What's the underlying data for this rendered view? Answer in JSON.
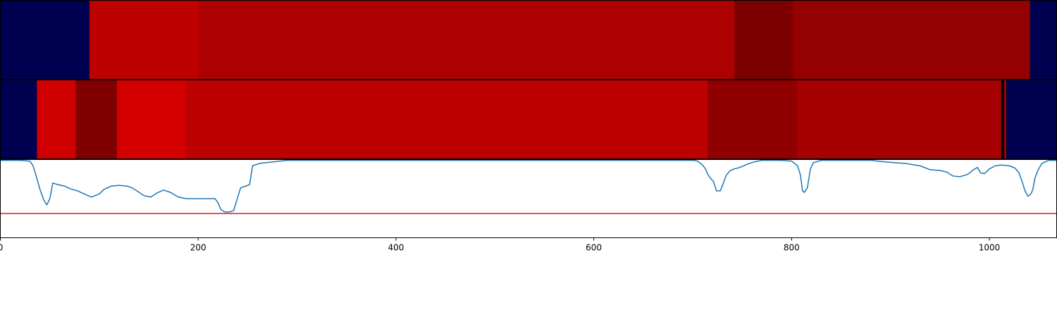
{
  "chart_data": [
    {
      "type": "heatmap",
      "segments": [
        {
          "start": 0,
          "end": 90,
          "color": "#000050"
        },
        {
          "start": 90,
          "end": 200,
          "color": "#bd0000"
        },
        {
          "start": 200,
          "end": 742,
          "color": "#ad0000"
        },
        {
          "start": 742,
          "end": 801,
          "color": "#7d0000"
        },
        {
          "start": 801,
          "end": 1041,
          "color": "#950000"
        },
        {
          "start": 1041,
          "end": 1068,
          "color": "#000050"
        }
      ]
    },
    {
      "type": "heatmap",
      "segments": [
        {
          "start": 0,
          "end": 37,
          "color": "#000050"
        },
        {
          "start": 37,
          "end": 76,
          "color": "#d10000"
        },
        {
          "start": 76,
          "end": 118,
          "color": "#800000"
        },
        {
          "start": 118,
          "end": 187,
          "color": "#d40000"
        },
        {
          "start": 187,
          "end": 715,
          "color": "#bd0000"
        },
        {
          "start": 715,
          "end": 805,
          "color": "#910000"
        },
        {
          "start": 805,
          "end": 1012,
          "color": "#a60000"
        },
        {
          "start": 1012,
          "end": 1015,
          "color": "#000000"
        },
        {
          "start": 1015,
          "end": 1017,
          "color": "#a60000"
        },
        {
          "start": 1017,
          "end": 1068,
          "color": "#000050"
        }
      ]
    },
    {
      "type": "line",
      "xlim": [
        0,
        1068
      ],
      "ylim": [
        0,
        1
      ],
      "x_ticks": [
        0,
        200,
        400,
        600,
        800,
        1000
      ],
      "threshold": {
        "value": 0.31,
        "color": "#e31a1c"
      },
      "series": [
        {
          "color": "#1f77b4",
          "points": [
            [
              0,
              0.99
            ],
            [
              20,
              0.99
            ],
            [
              30,
              0.98
            ],
            [
              33,
              0.92
            ],
            [
              36,
              0.8
            ],
            [
              40,
              0.62
            ],
            [
              44,
              0.48
            ],
            [
              47,
              0.42
            ],
            [
              50,
              0.5
            ],
            [
              53,
              0.7
            ],
            [
              58,
              0.68
            ],
            [
              65,
              0.66
            ],
            [
              72,
              0.62
            ],
            [
              78,
              0.6
            ],
            [
              85,
              0.56
            ],
            [
              92,
              0.52
            ],
            [
              100,
              0.56
            ],
            [
              105,
              0.62
            ],
            [
              112,
              0.66
            ],
            [
              120,
              0.67
            ],
            [
              128,
              0.66
            ],
            [
              133,
              0.64
            ],
            [
              138,
              0.6
            ],
            [
              145,
              0.54
            ],
            [
              152,
              0.52
            ],
            [
              158,
              0.57
            ],
            [
              165,
              0.61
            ],
            [
              172,
              0.58
            ],
            [
              180,
              0.52
            ],
            [
              188,
              0.5
            ],
            [
              200,
              0.5
            ],
            [
              210,
              0.5
            ],
            [
              217,
              0.5
            ],
            [
              220,
              0.45
            ],
            [
              223,
              0.36
            ],
            [
              227,
              0.33
            ],
            [
              232,
              0.33
            ],
            [
              236,
              0.35
            ],
            [
              240,
              0.52
            ],
            [
              243,
              0.64
            ],
            [
              248,
              0.66
            ],
            [
              252,
              0.68
            ],
            [
              255,
              0.92
            ],
            [
              262,
              0.95
            ],
            [
              275,
              0.97
            ],
            [
              290,
              0.99
            ],
            [
              450,
              0.99
            ],
            [
              700,
              0.99
            ],
            [
              705,
              0.98
            ],
            [
              710,
              0.93
            ],
            [
              713,
              0.88
            ],
            [
              715,
              0.82
            ],
            [
              718,
              0.76
            ],
            [
              721,
              0.72
            ],
            [
              724,
              0.6
            ],
            [
              728,
              0.6
            ],
            [
              731,
              0.7
            ],
            [
              734,
              0.8
            ],
            [
              738,
              0.86
            ],
            [
              742,
              0.88
            ],
            [
              748,
              0.9
            ],
            [
              755,
              0.94
            ],
            [
              762,
              0.97
            ],
            [
              770,
              0.99
            ],
            [
              790,
              0.99
            ],
            [
              800,
              0.98
            ],
            [
              806,
              0.92
            ],
            [
              809,
              0.8
            ],
            [
              811,
              0.6
            ],
            [
              813,
              0.58
            ],
            [
              816,
              0.64
            ],
            [
              819,
              0.88
            ],
            [
              822,
              0.96
            ],
            [
              830,
              0.99
            ],
            [
              880,
              0.99
            ],
            [
              895,
              0.97
            ],
            [
              905,
              0.96
            ],
            [
              915,
              0.95
            ],
            [
              930,
              0.92
            ],
            [
              940,
              0.87
            ],
            [
              950,
              0.86
            ],
            [
              957,
              0.84
            ],
            [
              963,
              0.79
            ],
            [
              970,
              0.78
            ],
            [
              978,
              0.81
            ],
            [
              984,
              0.87
            ],
            [
              988,
              0.9
            ],
            [
              991,
              0.83
            ],
            [
              995,
              0.82
            ],
            [
              1000,
              0.88
            ],
            [
              1006,
              0.92
            ],
            [
              1012,
              0.93
            ],
            [
              1020,
              0.92
            ],
            [
              1026,
              0.89
            ],
            [
              1030,
              0.83
            ],
            [
              1033,
              0.72
            ],
            [
              1036,
              0.6
            ],
            [
              1039,
              0.53
            ],
            [
              1042,
              0.56
            ],
            [
              1044,
              0.62
            ],
            [
              1046,
              0.76
            ],
            [
              1049,
              0.86
            ],
            [
              1053,
              0.95
            ],
            [
              1060,
              0.99
            ],
            [
              1068,
              0.99
            ]
          ]
        }
      ]
    }
  ]
}
